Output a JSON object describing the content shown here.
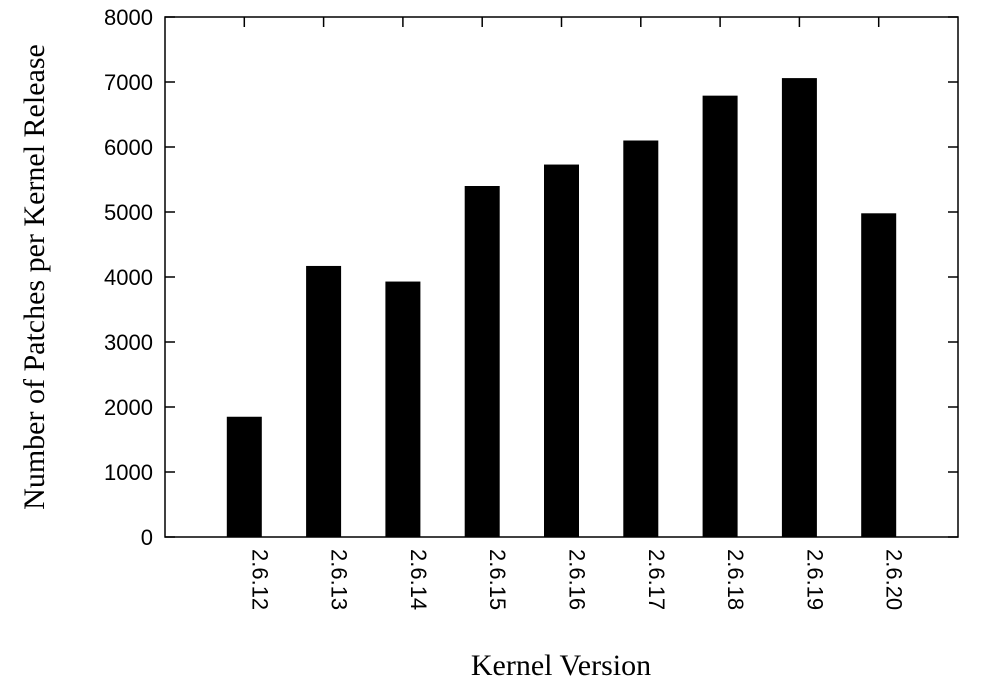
{
  "chart_data": {
    "type": "bar",
    "title": "",
    "xlabel": "Kernel Version",
    "ylabel": "Number of Patches per Kernel Release",
    "categories": [
      "2.6.12",
      "2.6.13",
      "2.6.14",
      "2.6.15",
      "2.6.16",
      "2.6.17",
      "2.6.18",
      "2.6.19",
      "2.6.20"
    ],
    "values": [
      1850,
      4170,
      3930,
      5400,
      5730,
      6100,
      6790,
      7060,
      4980
    ],
    "yticks": [
      0,
      1000,
      2000,
      3000,
      4000,
      5000,
      6000,
      7000,
      8000
    ],
    "ylim": [
      0,
      8000
    ],
    "grid": false,
    "bar_color": "#000000"
  }
}
